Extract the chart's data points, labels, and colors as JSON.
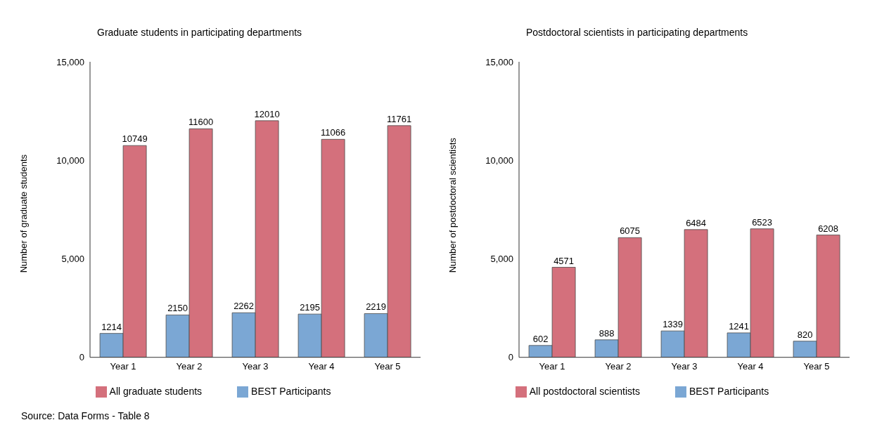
{
  "chart_data": [
    {
      "type": "bar",
      "title": "Graduate students in participating departments",
      "ylabel": "Number of graduate students",
      "categories": [
        "Year 1",
        "Year 2",
        "Year 3",
        "Year 4",
        "Year 5"
      ],
      "series": [
        {
          "name": "BEST Participants",
          "color": "#7ba7d4",
          "values": [
            1214,
            2150,
            2262,
            2195,
            2219
          ]
        },
        {
          "name": "All graduate students",
          "color": "#d4707c",
          "values": [
            10749,
            11600,
            12010,
            11066,
            11761
          ]
        }
      ],
      "ylim": [
        0,
        15000
      ],
      "yticks": [
        0,
        {
          "value": 5000,
          "label": "5,000"
        },
        {
          "value": 10000,
          "label": "10,000"
        },
        {
          "value": 15000,
          "label": "15,000"
        }
      ],
      "data_labels": true,
      "legend": "bottom",
      "annotations": [
        "Source: Data Forms - Table 8"
      ]
    },
    {
      "type": "bar",
      "title": "Postdoctoral scientists in participating departments",
      "ylabel": "Number of postdoctoral scientists",
      "categories": [
        "Year 1",
        "Year 2",
        "Year 3",
        "Year 4",
        "Year 5"
      ],
      "series": [
        {
          "name": "BEST Participants",
          "color": "#7ba7d4",
          "values": [
            602,
            888,
            1339,
            1241,
            820
          ]
        },
        {
          "name": "All postdoctoral scientists",
          "color": "#d4707c",
          "values": [
            4571,
            6075,
            6484,
            6523,
            6208
          ]
        }
      ],
      "ylim": [
        0,
        15000
      ],
      "yticks": [
        0,
        {
          "value": 5000,
          "label": "5,000"
        },
        {
          "value": 10000,
          "label": "10,000"
        },
        {
          "value": 15000,
          "label": "15,000"
        }
      ],
      "data_labels": true,
      "legend": "bottom"
    }
  ]
}
